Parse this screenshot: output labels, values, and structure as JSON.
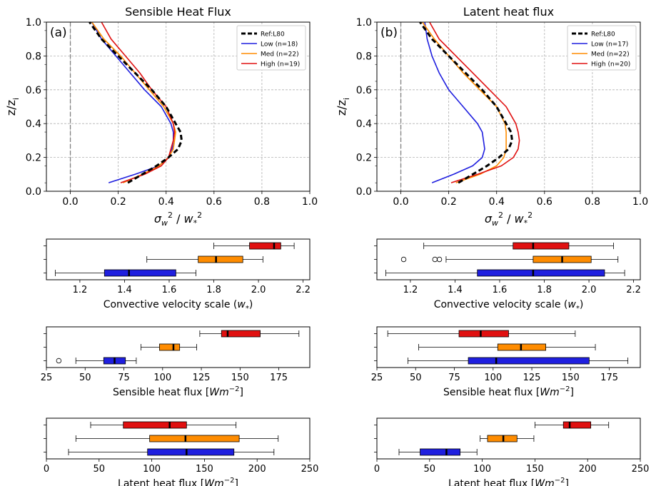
{
  "colors": {
    "ref": "#000000",
    "low": "#1f1fdf",
    "med": "#ff8c00",
    "high": "#e01010",
    "grid": "#b0b0b0",
    "zero": "#808080"
  },
  "chart_data": [
    {
      "type": "line",
      "id": "a",
      "panel_tag": "(a)",
      "title": "Sensible Heat Flux",
      "xlabel": "σ_w^2 / w_*^2",
      "ylabel": "z/z_i",
      "xlim": [
        -0.1,
        1.0
      ],
      "ylim": [
        0,
        1.0
      ],
      "xticks": [
        "0.0",
        "0.2",
        "0.4",
        "0.6",
        "0.8",
        "1.0"
      ],
      "yticks": [
        "0.0",
        "0.2",
        "0.4",
        "0.6",
        "0.8",
        "1.0"
      ],
      "grid": true,
      "legend": "top-right",
      "zero_line": 0,
      "series": [
        {
          "name": "Ref:L80",
          "key": "ref",
          "dashed": true,
          "x": [
            0.24,
            0.3,
            0.36,
            0.41,
            0.45,
            0.465,
            0.46,
            0.44,
            0.4,
            0.34,
            0.27,
            0.2,
            0.13,
            0.08
          ],
          "y": [
            0.05,
            0.1,
            0.15,
            0.2,
            0.25,
            0.3,
            0.35,
            0.4,
            0.5,
            0.6,
            0.7,
            0.8,
            0.9,
            1.0
          ]
        },
        {
          "name": "Low (n=18)",
          "key": "low",
          "dashed": false,
          "x": [
            0.16,
            0.27,
            0.37,
            0.41,
            0.425,
            0.43,
            0.43,
            0.42,
            0.38,
            0.31,
            0.25,
            0.19,
            0.13,
            0.09
          ],
          "y": [
            0.05,
            0.1,
            0.15,
            0.2,
            0.25,
            0.3,
            0.35,
            0.4,
            0.5,
            0.6,
            0.7,
            0.8,
            0.9,
            1.0
          ]
        },
        {
          "name": "Med (n=22)",
          "key": "med",
          "dashed": false,
          "x": [
            0.22,
            0.3,
            0.37,
            0.41,
            0.43,
            0.435,
            0.44,
            0.43,
            0.39,
            0.33,
            0.27,
            0.21,
            0.14,
            0.09
          ],
          "y": [
            0.05,
            0.1,
            0.15,
            0.2,
            0.25,
            0.3,
            0.35,
            0.4,
            0.5,
            0.6,
            0.7,
            0.8,
            0.9,
            1.0
          ]
        },
        {
          "name": "High (n=19)",
          "key": "high",
          "dashed": false,
          "x": [
            0.21,
            0.31,
            0.38,
            0.41,
            0.42,
            0.43,
            0.435,
            0.43,
            0.4,
            0.34,
            0.29,
            0.23,
            0.17,
            0.13
          ],
          "y": [
            0.05,
            0.1,
            0.15,
            0.2,
            0.25,
            0.3,
            0.35,
            0.4,
            0.5,
            0.6,
            0.7,
            0.8,
            0.9,
            1.0
          ]
        }
      ]
    },
    {
      "type": "line",
      "id": "b",
      "panel_tag": "(b)",
      "title": "Latent heat flux",
      "xlabel": "σ_w^2 / w_*^2",
      "ylabel": "z/z_i",
      "xlim": [
        -0.1,
        1.0
      ],
      "ylim": [
        0,
        1.0
      ],
      "xticks": [
        "0.0",
        "0.2",
        "0.4",
        "0.6",
        "0.8",
        "1.0"
      ],
      "yticks": [
        "0.0",
        "0.2",
        "0.4",
        "0.6",
        "0.8",
        "1.0"
      ],
      "grid": true,
      "legend": "top-right",
      "zero_line": 0,
      "series": [
        {
          "name": "Ref:L80",
          "key": "ref",
          "dashed": true,
          "x": [
            0.24,
            0.3,
            0.36,
            0.41,
            0.45,
            0.465,
            0.46,
            0.44,
            0.4,
            0.34,
            0.27,
            0.2,
            0.13,
            0.08
          ],
          "y": [
            0.05,
            0.1,
            0.15,
            0.2,
            0.25,
            0.3,
            0.35,
            0.4,
            0.5,
            0.6,
            0.7,
            0.8,
            0.9,
            1.0
          ]
        },
        {
          "name": "Low (n=17)",
          "key": "low",
          "dashed": false,
          "x": [
            0.13,
            0.22,
            0.3,
            0.34,
            0.35,
            0.345,
            0.34,
            0.32,
            0.26,
            0.2,
            0.16,
            0.13,
            0.11,
            0.1
          ],
          "y": [
            0.05,
            0.1,
            0.15,
            0.2,
            0.25,
            0.3,
            0.35,
            0.4,
            0.5,
            0.6,
            0.7,
            0.8,
            0.9,
            1.0
          ]
        },
        {
          "name": "Med (n=22)",
          "key": "med",
          "dashed": false,
          "x": [
            0.23,
            0.33,
            0.4,
            0.43,
            0.44,
            0.44,
            0.44,
            0.435,
            0.4,
            0.33,
            0.26,
            0.2,
            0.14,
            0.09
          ],
          "y": [
            0.05,
            0.1,
            0.15,
            0.2,
            0.25,
            0.3,
            0.35,
            0.4,
            0.5,
            0.6,
            0.7,
            0.8,
            0.9,
            1.0
          ]
        },
        {
          "name": "High (n=20)",
          "key": "high",
          "dashed": false,
          "x": [
            0.21,
            0.32,
            0.42,
            0.47,
            0.49,
            0.495,
            0.49,
            0.48,
            0.44,
            0.37,
            0.3,
            0.23,
            0.16,
            0.12
          ],
          "y": [
            0.05,
            0.1,
            0.15,
            0.2,
            0.25,
            0.3,
            0.35,
            0.4,
            0.5,
            0.6,
            0.7,
            0.8,
            0.9,
            1.0
          ]
        }
      ]
    },
    {
      "type": "box",
      "id": "w_a",
      "xlabel": "Convective velocity scale (w_*)",
      "xlim": [
        1.05,
        2.23
      ],
      "xticks": [
        "1.2",
        "1.4",
        "1.6",
        "1.8",
        "2.0",
        "2.2"
      ],
      "boxes": [
        {
          "key": "low",
          "whislo": 1.09,
          "q1": 1.31,
          "med": 1.42,
          "q3": 1.63,
          "whishi": 1.72,
          "fliers": []
        },
        {
          "key": "med",
          "whislo": 1.5,
          "q1": 1.73,
          "med": 1.81,
          "q3": 1.93,
          "whishi": 2.02,
          "fliers": []
        },
        {
          "key": "high",
          "whislo": 1.8,
          "q1": 1.96,
          "med": 2.07,
          "q3": 2.1,
          "whishi": 2.16,
          "fliers": []
        }
      ]
    },
    {
      "type": "box",
      "id": "w_b",
      "xlabel": "Convective velocity scale (w_*)",
      "xlim": [
        1.05,
        2.23
      ],
      "xticks": [
        "1.2",
        "1.4",
        "1.6",
        "1.8",
        "2.0",
        "2.2"
      ],
      "boxes": [
        {
          "key": "low",
          "whislo": 1.09,
          "q1": 1.5,
          "med": 1.75,
          "q3": 2.07,
          "whishi": 2.16,
          "fliers": []
        },
        {
          "key": "med",
          "whislo": 1.36,
          "q1": 1.75,
          "med": 1.88,
          "q3": 2.01,
          "whishi": 2.13,
          "fliers": [
            1.17,
            1.31,
            1.33
          ]
        },
        {
          "key": "high",
          "whislo": 1.26,
          "q1": 1.66,
          "med": 1.75,
          "q3": 1.91,
          "whishi": 2.11,
          "fliers": []
        }
      ]
    },
    {
      "type": "box",
      "id": "h_a",
      "xlabel": "Sensible heat flux [Wm^-2]",
      "xlim": [
        25,
        195
      ],
      "xticks": [
        "25",
        "50",
        "75",
        "100",
        "125",
        "150",
        "175"
      ],
      "boxes": [
        {
          "key": "low",
          "whislo": 44,
          "q1": 62,
          "med": 69,
          "q3": 76,
          "whishi": 83,
          "fliers": [
            33
          ]
        },
        {
          "key": "med",
          "whislo": 86,
          "q1": 98,
          "med": 107,
          "q3": 111,
          "whishi": 122,
          "fliers": []
        },
        {
          "key": "high",
          "whislo": 124,
          "q1": 138,
          "med": 142,
          "q3": 163,
          "whishi": 188,
          "fliers": []
        }
      ]
    },
    {
      "type": "box",
      "id": "h_b",
      "xlabel": "Sensible heat flux [Wm^-2]",
      "xlim": [
        25,
        195
      ],
      "xticks": [
        "25",
        "50",
        "75",
        "100",
        "125",
        "150",
        "175"
      ],
      "boxes": [
        {
          "key": "low",
          "whislo": 45,
          "q1": 84,
          "med": 102,
          "q3": 162,
          "whishi": 187,
          "fliers": []
        },
        {
          "key": "med",
          "whislo": 52,
          "q1": 103,
          "med": 118,
          "q3": 134,
          "whishi": 166,
          "fliers": []
        },
        {
          "key": "high",
          "whislo": 32,
          "q1": 78,
          "med": 92,
          "q3": 110,
          "whishi": 153,
          "fliers": []
        }
      ]
    },
    {
      "type": "box",
      "id": "l_a",
      "xlabel": "Latent heat flux [Wm^-2]",
      "xlim": [
        0,
        250
      ],
      "xticks": [
        "0",
        "50",
        "100",
        "150",
        "200",
        "250"
      ],
      "boxes": [
        {
          "key": "low",
          "whislo": 21,
          "q1": 96,
          "med": 133,
          "q3": 178,
          "whishi": 216,
          "fliers": []
        },
        {
          "key": "med",
          "whislo": 28,
          "q1": 98,
          "med": 132,
          "q3": 183,
          "whishi": 220,
          "fliers": []
        },
        {
          "key": "high",
          "whislo": 42,
          "q1": 73,
          "med": 117,
          "q3": 133,
          "whishi": 180,
          "fliers": []
        }
      ]
    },
    {
      "type": "box",
      "id": "l_b",
      "xlabel": "Latent heat flux [Wm^-2]",
      "xlim": [
        0,
        250
      ],
      "xticks": [
        "0",
        "50",
        "100",
        "150",
        "200",
        "250"
      ],
      "boxes": [
        {
          "key": "low",
          "whislo": 21,
          "q1": 41,
          "med": 66,
          "q3": 79,
          "whishi": 95,
          "fliers": []
        },
        {
          "key": "med",
          "whislo": 98,
          "q1": 105,
          "med": 120,
          "q3": 133,
          "whishi": 149,
          "fliers": []
        },
        {
          "key": "high",
          "whislo": 150,
          "q1": 177,
          "med": 183,
          "q3": 203,
          "whishi": 220,
          "fliers": []
        }
      ]
    }
  ]
}
